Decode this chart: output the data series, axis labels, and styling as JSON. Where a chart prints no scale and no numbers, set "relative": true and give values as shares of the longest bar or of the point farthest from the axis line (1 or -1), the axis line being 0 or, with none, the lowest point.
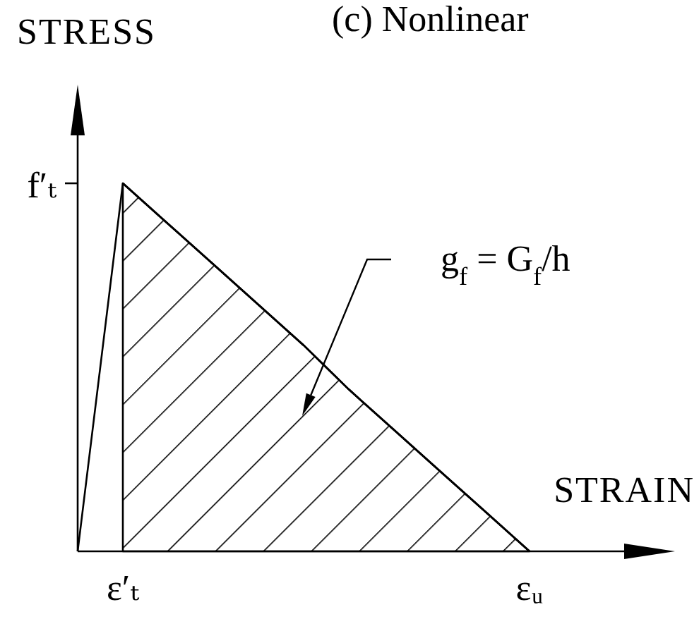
{
  "chart_data": {
    "type": "line",
    "relative": true,
    "title": "(c) Nonlinear",
    "xlabel": "STRAIN",
    "ylabel": "STRESS",
    "categories": [
      null,
      "ε′ₜ",
      null,
      null,
      null,
      null,
      null,
      null,
      null,
      null,
      "εᵤ"
    ],
    "series": [
      {
        "color": "#000000",
        "values": [
          0,
          1,
          0.89,
          0.78,
          0.67,
          0.56,
          0.44,
          0.33,
          0.22,
          0.11,
          0
        ]
      },
      {
        "type": "area",
        "color": "#000000",
        "values": [
          null,
          1,
          0.89,
          0.78,
          0.67,
          0.56,
          0.44,
          0.33,
          0.22,
          0.11,
          0
        ]
      }
    ],
    "marker": "none",
    "annotations": [
      "g$_{f}$ = G$_{f}$/h",
      "f′ₜ"
    ]
  }
}
